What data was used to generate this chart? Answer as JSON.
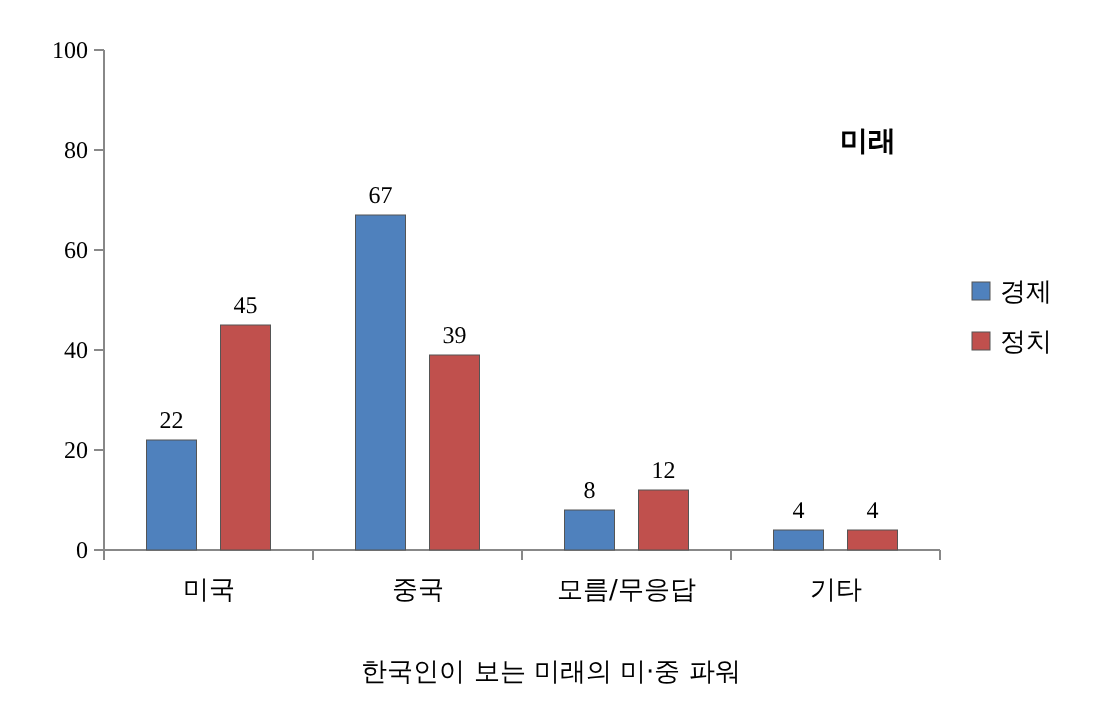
{
  "chart_data": {
    "type": "bar",
    "title": "미래",
    "categories": [
      "미국",
      "중국",
      "모름/무응답",
      "기타"
    ],
    "series": [
      {
        "name": "경제",
        "color": "#4f81bd",
        "values": [
          22,
          67,
          8,
          4
        ]
      },
      {
        "name": "정치",
        "color": "#c0504d",
        "values": [
          45,
          39,
          12,
          4
        ]
      }
    ],
    "data_labels": true,
    "ylim": [
      0,
      100
    ],
    "yticks": [
      0,
      20,
      40,
      60,
      80,
      100
    ],
    "legend": "right",
    "annotations": [
      "한국인이 보는 미래의 미·중 파워"
    ]
  }
}
